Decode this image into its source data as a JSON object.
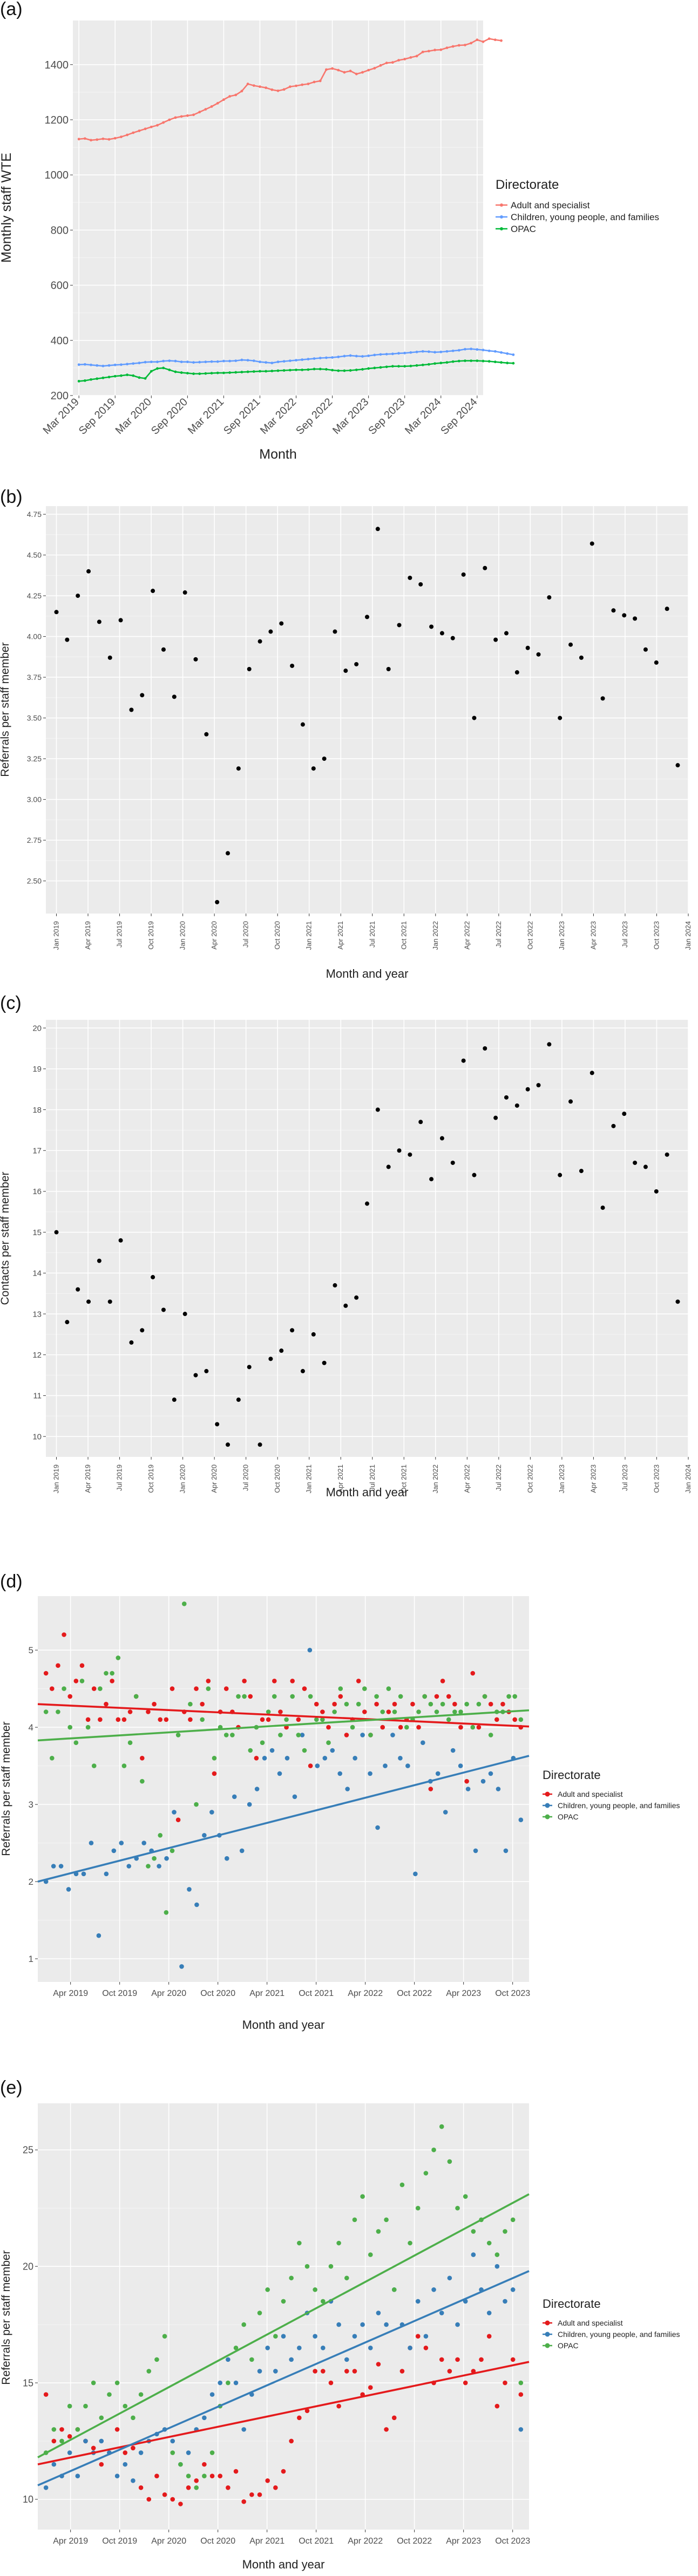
{
  "chart_data": [
    {
      "panel_label": "(a)",
      "type": "line",
      "xlabel": "Month",
      "ylabel": "Monthly staff WTE",
      "ylim": [
        200,
        1560
      ],
      "yticks": [
        200,
        400,
        600,
        800,
        1000,
        1200,
        1400
      ],
      "x_range": [
        "2019-02",
        "2024-10"
      ],
      "xticks": [
        "Mar 2019",
        "Sep 2019",
        "Mar 2020",
        "Sep 2020",
        "Mar 2021",
        "Sep 2021",
        "Mar 2022",
        "Sep 2022",
        "Mar 2023",
        "Sep 2023",
        "Mar 2024",
        "Sep 2024"
      ],
      "legend": {
        "title": "Directorate",
        "position": "right"
      },
      "grid": true,
      "series": [
        {
          "name": "Adult and specialist",
          "color": "#F8766D",
          "x_start": "2019-03",
          "values": [
            1130,
            1132,
            1126,
            1128,
            1131,
            1129,
            1133,
            1138,
            1145,
            1153,
            1160,
            1167,
            1174,
            1180,
            1190,
            1200,
            1208,
            1212,
            1215,
            1218,
            1228,
            1238,
            1248,
            1260,
            1273,
            1285,
            1290,
            1304,
            1330,
            1324,
            1320,
            1316,
            1309,
            1305,
            1310,
            1320,
            1323,
            1327,
            1330,
            1337,
            1341,
            1382,
            1386,
            1380,
            1372,
            1377,
            1366,
            1372,
            1380,
            1387,
            1397,
            1406,
            1408,
            1416,
            1420,
            1426,
            1431,
            1446,
            1449,
            1453,
            1454,
            1461,
            1466,
            1470,
            1471,
            1478,
            1490,
            1483,
            1494,
            1490,
            1487
          ]
        },
        {
          "name": "Children, young people, and families",
          "color": "#619CFF",
          "x_start": "2019-03",
          "values": [
            312,
            313,
            311,
            309,
            307,
            309,
            311,
            312,
            314,
            316,
            318,
            321,
            322,
            322,
            325,
            326,
            325,
            322,
            322,
            320,
            321,
            322,
            323,
            323,
            325,
            325,
            326,
            329,
            328,
            326,
            322,
            320,
            318,
            322,
            324,
            326,
            328,
            330,
            332,
            334,
            336,
            337,
            338,
            340,
            343,
            345,
            343,
            342,
            344,
            347,
            349,
            350,
            351,
            353,
            354,
            356,
            358,
            360,
            359,
            357,
            358,
            360,
            362,
            364,
            368,
            369,
            367,
            365,
            362,
            360,
            356,
            352,
            348
          ]
        },
        {
          "name": "OPAC",
          "color": "#00BA38",
          "x_start": "2019-03",
          "values": [
            252,
            254,
            258,
            261,
            264,
            267,
            270,
            272,
            275,
            272,
            265,
            262,
            288,
            298,
            300,
            293,
            286,
            283,
            281,
            279,
            279,
            280,
            281,
            282,
            282,
            283,
            284,
            285,
            286,
            287,
            288,
            288,
            289,
            290,
            291,
            292,
            293,
            293,
            294,
            296,
            296,
            295,
            292,
            290,
            290,
            291,
            293,
            295,
            298,
            300,
            302,
            304,
            306,
            306,
            306,
            307,
            309,
            311,
            313,
            316,
            318,
            320,
            323,
            325,
            326,
            326,
            326,
            325,
            324,
            322,
            320,
            318,
            317
          ]
        }
      ]
    },
    {
      "panel_label": "(b)",
      "type": "scatter",
      "xlabel": "Month and year",
      "ylabel": "Referrals per staff member",
      "ylim": [
        2.3,
        4.8
      ],
      "yticks": [
        2.5,
        2.75,
        3.0,
        3.25,
        3.5,
        3.75,
        4.0,
        4.25,
        4.5,
        4.75
      ],
      "y_decimals": 2,
      "x_range": [
        "2018-12",
        "2024-01"
      ],
      "xticks": [
        "Jan 2019",
        "Apr 2019",
        "Jul 2019",
        "Oct 2019",
        "Jan 2020",
        "Apr 2020",
        "Jul 2020",
        "Oct 2020",
        "Jan 2021",
        "Apr 2021",
        "Jul 2021",
        "Oct 2021",
        "Jan 2022",
        "Apr 2022",
        "Jul 2022",
        "Oct 2022",
        "Jan 2023",
        "Apr 2023",
        "Jul 2023",
        "Oct 2023",
        "Jan 2024"
      ],
      "grid": true,
      "series": [
        {
          "color": "#000000",
          "x_start": "2019-01",
          "values": [
            4.15,
            3.98,
            4.25,
            4.4,
            4.09,
            3.87,
            4.1,
            3.55,
            3.64,
            4.28,
            3.92,
            3.63,
            4.27,
            3.86,
            3.4,
            2.37,
            2.67,
            3.19,
            3.8,
            3.97,
            4.03,
            4.08,
            3.82,
            3.46,
            3.19,
            3.25,
            4.03,
            3.79,
            3.83,
            4.12,
            4.66,
            3.8,
            4.07,
            4.36,
            4.32,
            4.06,
            4.02,
            3.99,
            4.38,
            3.5,
            4.42,
            3.98,
            4.02,
            3.78,
            3.93,
            3.89,
            4.24,
            3.5,
            3.95,
            3.87,
            4.57,
            3.62,
            4.16,
            4.13,
            4.11,
            3.92,
            3.84,
            4.17,
            3.21
          ]
        }
      ]
    },
    {
      "panel_label": "(c)",
      "type": "scatter",
      "xlabel": "Month and year",
      "ylabel": "Contacts per staff member",
      "ylim": [
        9.5,
        20.2
      ],
      "yticks": [
        10,
        11,
        12,
        13,
        14,
        15,
        16,
        17,
        18,
        19,
        20
      ],
      "y_decimals": 0,
      "x_range": [
        "2018-12",
        "2024-01"
      ],
      "xticks": [
        "Jan 2019",
        "Apr 2019",
        "Jul 2019",
        "Oct 2019",
        "Jan 2020",
        "Apr 2020",
        "Jul 2020",
        "Oct 2020",
        "Jan 2021",
        "Apr 2021",
        "Jul 2021",
        "Oct 2021",
        "Jan 2022",
        "Apr 2022",
        "Jul 2022",
        "Oct 2022",
        "Jan 2023",
        "Apr 2023",
        "Jul 2023",
        "Oct 2023",
        "Jan 2024"
      ],
      "grid": true,
      "series": [
        {
          "color": "#000000",
          "x_start": "2019-01",
          "values": [
            15.0,
            12.8,
            13.6,
            13.3,
            14.3,
            13.3,
            14.8,
            12.3,
            12.6,
            13.9,
            13.1,
            10.9,
            13.0,
            11.5,
            11.6,
            10.3,
            9.8,
            10.9,
            11.7,
            9.8,
            11.9,
            12.1,
            12.6,
            11.6,
            12.5,
            11.8,
            13.7,
            13.2,
            13.4,
            15.7,
            18.0,
            16.6,
            17.0,
            16.9,
            17.7,
            16.3,
            17.3,
            16.7,
            19.2,
            16.4,
            19.5,
            17.8,
            18.3,
            18.1,
            18.5,
            18.6,
            19.6,
            16.4,
            18.2,
            16.5,
            18.9,
            15.6,
            17.6,
            17.9,
            16.7,
            16.6,
            16.0,
            16.9,
            13.3
          ]
        }
      ]
    },
    {
      "panel_label": "(d)",
      "type": "scatter",
      "xlabel": "Month and year",
      "ylabel": "Referrals per staff member",
      "ylim": [
        0.7,
        5.7
      ],
      "yticks": [
        1,
        2,
        3,
        4,
        5
      ],
      "y_decimals": 0,
      "x_range": [
        "2018-12",
        "2023-12"
      ],
      "xticks": [
        "Apr 2019",
        "Oct 2019",
        "Apr 2020",
        "Oct 2020",
        "Apr 2021",
        "Oct 2021",
        "Apr 2022",
        "Oct 2022",
        "Apr 2023",
        "Oct 2023"
      ],
      "legend": {
        "title": "Directorate",
        "position": "right"
      },
      "grid": true,
      "series": [
        {
          "name": "Adult and specialist",
          "color": "#E41A1C",
          "x_start": "2019-01",
          "values": [
            4.7,
            4.5,
            4.8,
            5.2,
            4.4,
            4.6,
            4.8,
            4.1,
            4.5,
            4.1,
            4.3,
            4.6,
            4.1,
            4.1,
            4.2,
            4.4,
            3.6,
            4.2,
            4.3,
            4.1,
            4.1,
            4.5,
            2.8,
            4.2,
            4.1,
            4.5,
            4.3,
            4.6,
            3.4,
            4.2,
            4.5,
            4.2,
            4.0,
            4.6,
            4.4,
            3.6,
            4.1,
            4.1,
            4.6,
            4.2,
            4.0,
            4.6,
            4.1,
            4.5,
            3.5,
            4.3,
            4.2,
            4.0,
            4.3,
            4.4,
            3.9,
            4.1,
            4.6,
            4.2,
            3.9,
            4.3,
            4.0,
            4.2,
            4.3,
            4.0,
            4.1,
            4.3,
            4.0,
            4.4,
            3.2,
            4.4,
            4.6,
            4.4,
            4.3,
            4.0,
            3.3,
            4.7,
            4.0,
            4.4,
            4.3,
            4.1,
            4.3,
            4.2,
            4.1,
            4.0
          ]
        },
        {
          "name": "Children, young people, and families",
          "color": "#377EB8",
          "x_start": "2019-01",
          "values": [
            2.0,
            2.2,
            2.2,
            1.9,
            2.1,
            2.1,
            2.5,
            1.3,
            2.1,
            2.4,
            2.5,
            2.2,
            2.3,
            2.5,
            2.4,
            2.2,
            2.3,
            2.9,
            0.9,
            1.9,
            1.7,
            2.6,
            2.9,
            2.6,
            2.3,
            3.1,
            2.4,
            3.0,
            3.2,
            3.6,
            3.7,
            3.4,
            3.6,
            3.1,
            3.9,
            5.0,
            3.5,
            3.6,
            3.7,
            3.4,
            3.2,
            3.6,
            3.9,
            3.4,
            2.7,
            3.5,
            3.9,
            3.6,
            3.5,
            2.1,
            3.8,
            3.3,
            3.4,
            2.9,
            3.7,
            3.5,
            3.2,
            2.4,
            3.3,
            3.4,
            3.2,
            2.4,
            3.6,
            2.8
          ]
        },
        {
          "name": "OPAC",
          "color": "#4DAF4A",
          "x_start": "2019-01",
          "values": [
            4.2,
            3.6,
            4.2,
            4.5,
            4.0,
            3.8,
            4.6,
            4.0,
            3.5,
            4.5,
            4.7,
            4.7,
            4.9,
            3.5,
            3.8,
            4.4,
            3.3,
            2.2,
            2.3,
            2.6,
            1.6,
            2.4,
            3.9,
            5.6,
            4.3,
            3.0,
            4.1,
            4.5,
            3.6,
            4.0,
            3.9,
            3.9,
            4.4,
            4.4,
            3.7,
            4.0,
            3.8,
            4.2,
            4.4,
            3.9,
            4.1,
            4.4,
            3.9,
            3.7,
            4.4,
            4.1,
            4.1,
            3.8,
            4.2,
            4.5,
            4.3,
            4.0,
            4.3,
            4.5,
            3.9,
            4.4,
            4.2,
            4.5,
            4.2,
            4.4,
            4.0,
            4.1,
            4.2,
            4.4,
            4.3,
            4.2,
            4.3,
            4.1,
            4.2,
            4.2,
            4.3,
            4.0,
            4.3,
            4.4,
            3.9,
            4.2,
            4.2,
            4.4,
            4.4,
            4.1
          ]
        }
      ],
      "trend_lines": [
        {
          "name": "Adult and specialist",
          "color": "#E41A1C",
          "y_start": 4.3,
          "y_end": 4.01
        },
        {
          "name": "Children, young people, and families",
          "color": "#377EB8",
          "y_start": 2.0,
          "y_end": 3.63
        },
        {
          "name": "OPAC",
          "color": "#4DAF4A",
          "y_start": 3.83,
          "y_end": 4.22
        }
      ]
    },
    {
      "panel_label": "(e)",
      "type": "scatter",
      "xlabel": "Month and year",
      "ylabel": "Referrals per staff member",
      "ylim": [
        8.7,
        27.0
      ],
      "yticks": [
        10,
        15,
        20,
        25
      ],
      "y_decimals": 0,
      "x_range": [
        "2018-12",
        "2023-12"
      ],
      "xticks": [
        "Apr 2019",
        "Oct 2019",
        "Apr 2020",
        "Oct 2020",
        "Apr 2021",
        "Oct 2021",
        "Apr 2022",
        "Oct 2022",
        "Apr 2023",
        "Oct 2023"
      ],
      "legend": {
        "title": "Directorate",
        "position": "right"
      },
      "grid": true,
      "series": [
        {
          "name": "Adult and specialist",
          "color": "#E41A1C",
          "x_start": "2019-01",
          "values": [
            14.5,
            12.5,
            13.0,
            12.7,
            13.0,
            12.5,
            12.2,
            11.5,
            12.0,
            13.0,
            12.0,
            12.2,
            10.5,
            10.0,
            11.0,
            10.2,
            10.0,
            9.8,
            10.5,
            10.8,
            11.5,
            11.0,
            11.0,
            10.5,
            11.2,
            9.9,
            10.2,
            10.2,
            10.8,
            10.5,
            11.2,
            12.5,
            13.5,
            13.8,
            15.5,
            15.5,
            15.0,
            14.0,
            15.5,
            15.5,
            14.5,
            14.8,
            15.8,
            13.0,
            13.5,
            15.5,
            16.5,
            17.0,
            16.5,
            15.0,
            16.0,
            15.5,
            16.0,
            15.0,
            15.5,
            16.0,
            17.0,
            14.0,
            15.0,
            16.0,
            14.5
          ]
        },
        {
          "name": "Children, young people, and families",
          "color": "#377EB8",
          "x_start": "2019-01",
          "values": [
            10.5,
            11.5,
            11.0,
            12.0,
            11.0,
            12.5,
            12.0,
            12.5,
            12.0,
            11.0,
            11.5,
            10.8,
            12.0,
            12.5,
            12.8,
            13.0,
            12.5,
            11.5,
            12.0,
            13.0,
            13.5,
            14.5,
            15.0,
            16.0,
            15.0,
            13.0,
            14.5,
            15.5,
            16.5,
            15.5,
            17.0,
            16.0,
            16.5,
            18.0,
            17.0,
            16.5,
            18.5,
            17.5,
            16.0,
            17.0,
            17.5,
            16.5,
            18.0,
            17.5,
            19.0,
            17.5,
            16.5,
            18.5,
            17.0,
            19.0,
            18.0,
            19.5,
            17.5,
            18.5,
            20.5,
            19.0,
            18.0,
            20.0,
            18.5,
            19.0,
            13.0
          ]
        },
        {
          "name": "OPAC",
          "color": "#4DAF4A",
          "x_start": "2019-01",
          "values": [
            12.0,
            13.0,
            12.5,
            14.0,
            13.0,
            14.0,
            15.0,
            13.5,
            14.5,
            15.0,
            14.0,
            13.5,
            14.5,
            15.5,
            16.0,
            17.0,
            12.0,
            11.5,
            11.0,
            10.5,
            11.0,
            12.0,
            14.0,
            15.0,
            16.5,
            17.5,
            16.0,
            18.0,
            19.0,
            17.0,
            18.5,
            19.5,
            21.0,
            20.0,
            19.0,
            18.5,
            20.0,
            21.0,
            19.5,
            22.0,
            23.0,
            20.5,
            21.5,
            22.0,
            19.0,
            23.5,
            21.0,
            22.5,
            24.0,
            25.0,
            26.0,
            24.5,
            22.5,
            23.0,
            21.5,
            22.0,
            21.0,
            20.5,
            21.5,
            22.0,
            15.0
          ]
        }
      ],
      "trend_lines": [
        {
          "name": "Adult and specialist",
          "color": "#E41A1C",
          "y_start": 11.5,
          "y_end": 15.9
        },
        {
          "name": "Children, young people, and families",
          "color": "#377EB8",
          "y_start": 10.6,
          "y_end": 19.8
        },
        {
          "name": "OPAC",
          "color": "#4DAF4A",
          "y_start": 11.8,
          "y_end": 23.1
        }
      ]
    }
  ]
}
